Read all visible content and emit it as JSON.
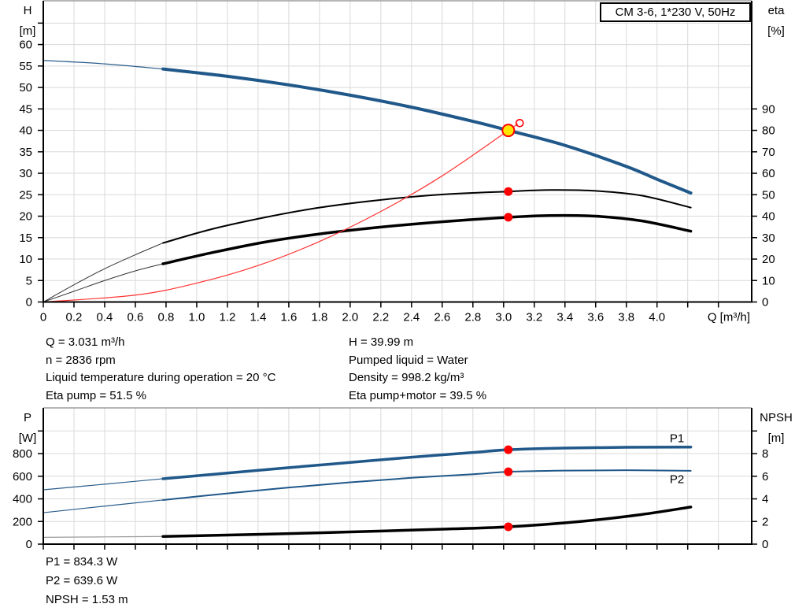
{
  "chart_data": [
    {
      "id": "hq-chart",
      "type": "line",
      "title": "CM 3-6, 1*230 V, 50Hz",
      "x_axis": {
        "label": "Q [m³/h]",
        "min": 0,
        "max": 4.617,
        "tick_step": 0.2,
        "max_tick": 4.4,
        "max_labeled": 4.0,
        "show_labels": true
      },
      "left_axis": {
        "title_lines": [
          "H",
          "[m]"
        ],
        "min": 0,
        "max": 70.2,
        "tick_step": 5,
        "max_tick": 65,
        "max_labeled": 60
      },
      "right_axis": {
        "title_lines": [
          "eta",
          "[%]"
        ],
        "min": 0,
        "max": 140.4,
        "tick_step": 10,
        "max_tick": 90,
        "max_labeled": 90
      },
      "grid": true,
      "series": [
        {
          "name": "head-curve-thin",
          "label": "H (out of range)",
          "axis": "left",
          "color": "#2a5d8c",
          "width": 1.2,
          "points": [
            [
              0,
              56.3
            ],
            [
              0.4,
              55.5
            ],
            [
              0.78,
              54.3
            ]
          ]
        },
        {
          "name": "head-curve",
          "label": "H",
          "axis": "left",
          "color": "#20588a",
          "width": 4,
          "points": [
            [
              0.78,
              54.3
            ],
            [
              1.2,
              52.6
            ],
            [
              1.6,
              50.6
            ],
            [
              2.0,
              48.2
            ],
            [
              2.4,
              45.4
            ],
            [
              2.8,
              42.1
            ],
            [
              3.031,
              39.99
            ],
            [
              3.4,
              36.5
            ],
            [
              3.8,
              31.6
            ],
            [
              4.0,
              28.6
            ],
            [
              4.22,
              25.4
            ]
          ]
        },
        {
          "name": "eta-pump-curve-thin",
          "label": "Eta pump (out of range)",
          "axis": "right",
          "color": "#333333",
          "width": 1,
          "points": [
            [
              0,
              0
            ],
            [
              0.2,
              8
            ],
            [
              0.4,
              15.5
            ],
            [
              0.6,
              22
            ],
            [
              0.78,
              27.5
            ]
          ]
        },
        {
          "name": "eta-pump-curve",
          "label": "Eta pump",
          "axis": "right",
          "color": "#000000",
          "width": 2,
          "points": [
            [
              0.78,
              27.5
            ],
            [
              1.1,
              34
            ],
            [
              1.45,
              39.5
            ],
            [
              1.8,
              44
            ],
            [
              2.2,
              47.6
            ],
            [
              2.6,
              50.1
            ],
            [
              3.031,
              51.5
            ],
            [
              3.3,
              52.2
            ],
            [
              3.6,
              51.8
            ],
            [
              3.9,
              49.6
            ],
            [
              4.22,
              44
            ]
          ]
        },
        {
          "name": "eta-pump-motor-curve-thin",
          "label": "Eta pump+motor (out of range)",
          "axis": "right",
          "color": "#333333",
          "width": 1,
          "points": [
            [
              0,
              0
            ],
            [
              0.2,
              5
            ],
            [
              0.4,
              10
            ],
            [
              0.6,
              14.5
            ],
            [
              0.78,
              17.8
            ]
          ]
        },
        {
          "name": "eta-pump-motor-curve",
          "label": "Eta pump+motor",
          "axis": "right",
          "color": "#000000",
          "width": 3.5,
          "points": [
            [
              0.78,
              17.8
            ],
            [
              1.1,
              23
            ],
            [
              1.45,
              28
            ],
            [
              1.8,
              31.7
            ],
            [
              2.2,
              34.9
            ],
            [
              2.6,
              37.4
            ],
            [
              3.031,
              39.5
            ],
            [
              3.3,
              40.3
            ],
            [
              3.6,
              40
            ],
            [
              3.9,
              37.8
            ],
            [
              4.22,
              33
            ]
          ]
        },
        {
          "name": "system-curve",
          "label": "System curve",
          "axis": "left",
          "color": "#ff3333",
          "width": 1.2,
          "points": [
            [
              0,
              0
            ],
            [
              0.6,
              1.6
            ],
            [
              1.0,
              4.4
            ],
            [
              1.4,
              8.5
            ],
            [
              1.8,
              14.1
            ],
            [
              2.2,
              21.1
            ],
            [
              2.6,
              29.4
            ],
            [
              3.031,
              39.99
            ],
            [
              3.09,
              41.5
            ]
          ]
        }
      ],
      "markers": [
        {
          "name": "duty-point",
          "axis": "left",
          "x": 3.031,
          "y": 39.99,
          "r": 7.5,
          "fill": "#ffe600",
          "stroke": "#ff0000",
          "stroke_width": 2,
          "interactable": true
        },
        {
          "name": "rated-point",
          "axis": "left",
          "x": 3.105,
          "y": 41.7,
          "r": 4.5,
          "fill": "none",
          "stroke": "#ff0000",
          "stroke_width": 1.6,
          "interactable": false
        },
        {
          "name": "eta-pump-point",
          "axis": "right",
          "x": 3.031,
          "y": 51.5,
          "r": 5.5,
          "fill": "#ff0000",
          "stroke": "none",
          "stroke_width": 0,
          "interactable": false
        },
        {
          "name": "eta-pump-motor-point",
          "axis": "right",
          "x": 3.031,
          "y": 39.5,
          "r": 5.5,
          "fill": "#ff0000",
          "stroke": "none",
          "stroke_width": 0,
          "interactable": false
        }
      ],
      "annotations": []
    },
    {
      "id": "power-npsh-chart",
      "type": "line",
      "title": "",
      "x_axis": {
        "label": "",
        "min": 0,
        "max": 4.617,
        "tick_step": 0.2,
        "max_tick": 4.4,
        "max_labeled": -1,
        "show_labels": false
      },
      "left_axis": {
        "title_lines": [
          "P",
          "[W]"
        ],
        "min": 0,
        "max": 1204,
        "tick_step": 200,
        "max_tick": 1000,
        "max_labeled": 800
      },
      "right_axis": {
        "title_lines": [
          "NPSH",
          "[m]"
        ],
        "min": 0,
        "max": 12.04,
        "tick_step": 2,
        "max_tick": 10,
        "max_labeled": 8
      },
      "grid": true,
      "series": [
        {
          "name": "p1-curve-thin",
          "label": "P1 (out of range)",
          "axis": "left",
          "color": "#2a5d8c",
          "width": 1.2,
          "points": [
            [
              0,
              480
            ],
            [
              0.4,
              530
            ],
            [
              0.78,
              578
            ]
          ]
        },
        {
          "name": "p1-curve",
          "label": "P1",
          "axis": "left",
          "color": "#20588a",
          "width": 3.5,
          "points": [
            [
              0.78,
              578
            ],
            [
              1.2,
              628
            ],
            [
              1.6,
              676
            ],
            [
              2.0,
              722
            ],
            [
              2.4,
              768
            ],
            [
              2.8,
              810
            ],
            [
              3.031,
              834.3
            ],
            [
              3.4,
              849
            ],
            [
              3.8,
              856
            ],
            [
              4.22,
              858
            ]
          ]
        },
        {
          "name": "p2-curve-thin",
          "label": "P2 (out of range)",
          "axis": "left",
          "color": "#2a5d8c",
          "width": 1.2,
          "points": [
            [
              0,
              278
            ],
            [
              0.4,
              336
            ],
            [
              0.78,
              390
            ]
          ]
        },
        {
          "name": "p2-curve",
          "label": "P2",
          "axis": "left",
          "color": "#20588a",
          "width": 2,
          "points": [
            [
              0.78,
              390
            ],
            [
              1.2,
              448
            ],
            [
              1.6,
              500
            ],
            [
              2.0,
              546
            ],
            [
              2.4,
              586
            ],
            [
              2.8,
              618
            ],
            [
              3.031,
              639.6
            ],
            [
              3.4,
              650
            ],
            [
              3.8,
              653
            ],
            [
              4.22,
              648
            ]
          ]
        },
        {
          "name": "npsh-curve-thin",
          "label": "NPSH (out of range)",
          "axis": "right",
          "color": "#9a9a9a",
          "width": 1.2,
          "points": [
            [
              0,
              0.6
            ],
            [
              0.4,
              0.64
            ],
            [
              0.78,
              0.68
            ]
          ]
        },
        {
          "name": "npsh-curve",
          "label": "NPSH",
          "axis": "right",
          "color": "#000000",
          "width": 3.5,
          "points": [
            [
              0.78,
              0.68
            ],
            [
              1.4,
              0.86
            ],
            [
              2.0,
              1.08
            ],
            [
              2.6,
              1.32
            ],
            [
              3.031,
              1.53
            ],
            [
              3.5,
              2.0
            ],
            [
              3.9,
              2.62
            ],
            [
              4.22,
              3.28
            ]
          ]
        }
      ],
      "markers": [
        {
          "name": "p1-point",
          "axis": "left",
          "x": 3.031,
          "y": 834.3,
          "r": 5.5,
          "fill": "#ff0000",
          "stroke": "none",
          "stroke_width": 0,
          "interactable": false
        },
        {
          "name": "p2-point",
          "axis": "left",
          "x": 3.031,
          "y": 639.6,
          "r": 5.5,
          "fill": "#ff0000",
          "stroke": "none",
          "stroke_width": 0,
          "interactable": false
        },
        {
          "name": "npsh-point",
          "axis": "right",
          "x": 3.031,
          "y": 1.53,
          "r": 5.5,
          "fill": "#ff0000",
          "stroke": "none",
          "stroke_width": 0,
          "interactable": false
        }
      ],
      "annotations": [
        {
          "name": "p1-series-label",
          "text": "P1",
          "axis": "left",
          "x": 4.13,
          "y": 900,
          "color": "#1b4f7e"
        },
        {
          "name": "p2-series-label",
          "text": "P2",
          "axis": "left",
          "x": 4.13,
          "y": 540,
          "color": "#1b4f7e"
        }
      ]
    }
  ],
  "info": {
    "left": [
      "Q = 3.031 m³/h",
      "n = 2836 rpm",
      "Liquid temperature during operation = 20 °C",
      "Eta pump = 51.5 %"
    ],
    "right": [
      "H = 39.99 m",
      "Pumped liquid = Water",
      "Density = 998.2 kg/m³",
      "Eta pump+motor = 39.5 %"
    ],
    "bottom": [
      "P1 = 834.3 W",
      "P2 = 639.6 W",
      "NPSH = 1.53 m"
    ]
  },
  "colors": {
    "curve_blue": "#20588a",
    "curve_black": "#000000",
    "curve_red": "#ff3333",
    "dot_red": "#ff0000",
    "duty_yellow": "#ffe600",
    "grid_gray": "#d9d9d9"
  }
}
